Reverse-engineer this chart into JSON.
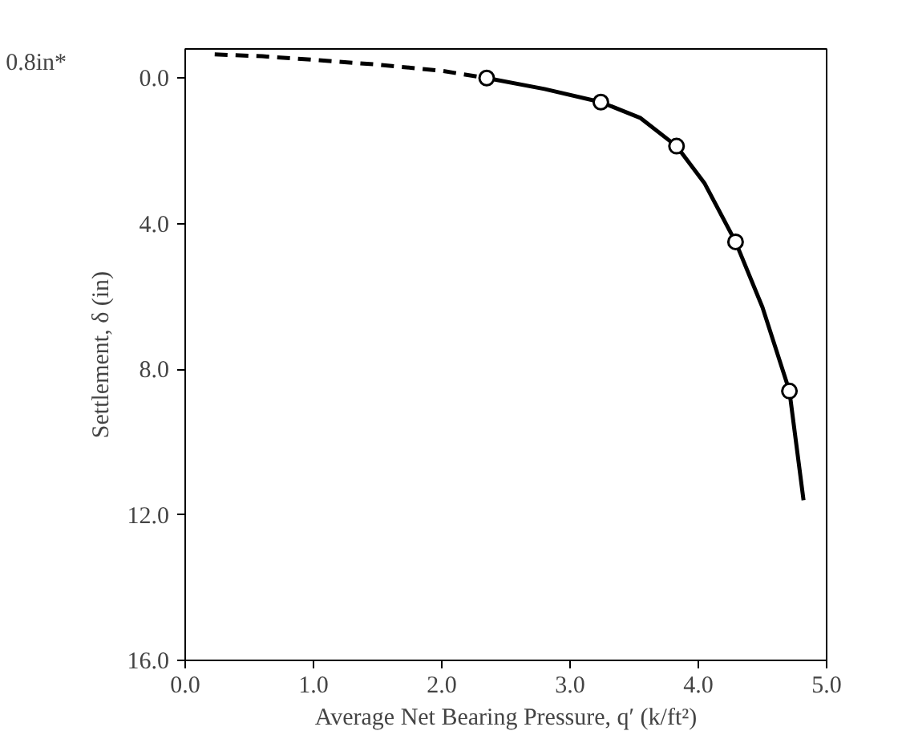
{
  "chart_data": {
    "type": "line",
    "xlabel": "Average Net Bearing Pressure, q′ (k/ft²)",
    "ylabel": "Settlement, δ (in)",
    "xlim": [
      0,
      5
    ],
    "ylim": [
      16,
      -0.8
    ],
    "xticks": [
      {
        "value": 0,
        "label": "0.0"
      },
      {
        "value": 1,
        "label": "1.0"
      },
      {
        "value": 2,
        "label": "2.0"
      },
      {
        "value": 3,
        "label": "3.0"
      },
      {
        "value": 4,
        "label": "4.0"
      },
      {
        "value": 5,
        "label": "5.0"
      }
    ],
    "yticks": [
      {
        "value": 0,
        "label": "0.0"
      },
      {
        "value": 4,
        "label": "4.0"
      },
      {
        "value": 8,
        "label": "8.0"
      },
      {
        "value": 12,
        "label": "12.0"
      },
      {
        "value": 16,
        "label": "16.0"
      }
    ],
    "grid": false,
    "annotations": [
      "0.8in*"
    ],
    "series": [
      {
        "line_style": "dashed",
        "marker": "none",
        "color": "#000000",
        "x": [
          0.23,
          0.6,
          1.0,
          1.5,
          2.0,
          2.35
        ],
        "values": [
          -0.65,
          -0.6,
          -0.5,
          -0.37,
          -0.2,
          0
        ]
      },
      {
        "line_style": "solid",
        "marker": "none",
        "color": "#000000",
        "x": [
          2.35,
          2.8,
          3.24,
          3.55,
          3.83,
          4.05,
          4.29,
          4.5,
          4.71,
          4.82
        ],
        "values": [
          0,
          0.3,
          0.66,
          1.1,
          1.87,
          2.9,
          4.5,
          6.3,
          8.6,
          11.6
        ]
      },
      {
        "type": "scatter",
        "marker": "circle",
        "color": "#000000",
        "x": [
          2.35,
          3.24,
          3.83,
          4.29,
          4.71
        ],
        "values": [
          0,
          0.66,
          1.87,
          4.5,
          8.6
        ]
      }
    ]
  }
}
